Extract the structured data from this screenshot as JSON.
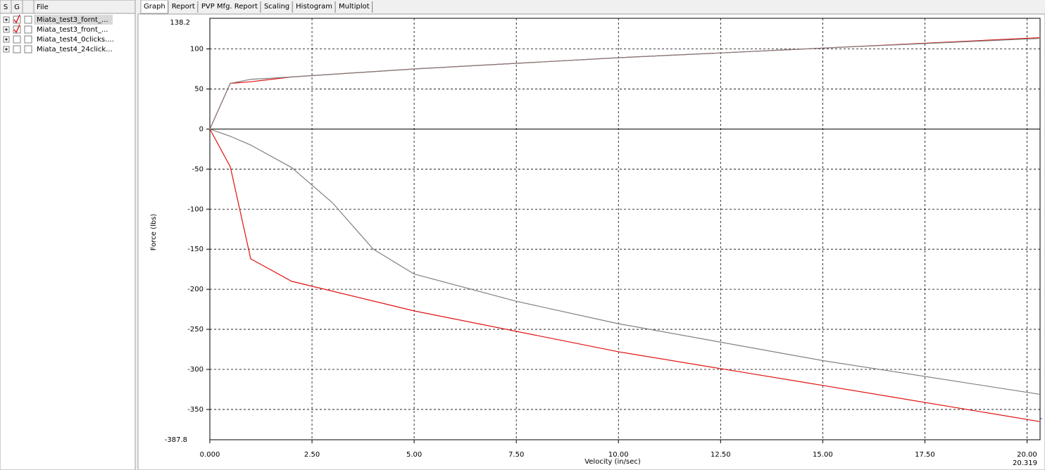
{
  "file_list": {
    "headers": [
      "S",
      "G",
      "File"
    ],
    "rows": [
      {
        "name": "Miata_test3_fornt_...",
        "color": "#e01010",
        "s_checked": true
      },
      {
        "name": "Miata_test3_front_...",
        "color": "#808080",
        "s_checked": true
      },
      {
        "name": "Miata_test4_0clicks....",
        "color": "#000000",
        "s_checked": false
      },
      {
        "name": "Miata_test4_24click...",
        "color": "#8b4a3a",
        "s_checked": false
      }
    ]
  },
  "tabs": [
    "Graph",
    "Report",
    "PVP Mfg. Report",
    "Scaling",
    "Histogram",
    "Multiplot"
  ],
  "selected_tab": 0,
  "chart_data": {
    "type": "line",
    "x_label": "Velocity (in/sec)",
    "y_label": "Force (lbs)",
    "xlim": [
      0,
      20.319
    ],
    "ylim": [
      -387.8,
      138.2
    ],
    "xticks": [
      {
        "value": 0,
        "label": "0.000"
      },
      {
        "value": 2.5,
        "label": "2.50"
      },
      {
        "value": 5,
        "label": "5.00"
      },
      {
        "value": 7.5,
        "label": "7.50"
      },
      {
        "value": 10,
        "label": "10.00"
      },
      {
        "value": 12.5,
        "label": "12.50"
      },
      {
        "value": 15,
        "label": "15.00"
      },
      {
        "value": 17.5,
        "label": "17.50"
      },
      {
        "value": 20,
        "label": "20.00"
      }
    ],
    "yticks": [
      100,
      50,
      0,
      -50,
      -100,
      -150,
      -200,
      -250,
      -300,
      -350
    ],
    "grid": true,
    "series": [
      {
        "color": "#e01010",
        "x": [
          0,
          0.5,
          1,
          2,
          5,
          10,
          15,
          20.3
        ],
        "values": [
          0,
          57,
          59,
          65,
          75,
          89,
          101,
          114
        ]
      },
      {
        "color": "#808080",
        "x": [
          0,
          0.5,
          1,
          2,
          5,
          10,
          15,
          20.3
        ],
        "values": [
          0,
          57,
          62,
          65,
          75,
          89,
          101,
          113
        ]
      },
      {
        "color": "#e01010",
        "x": [
          0,
          0.5,
          1,
          2,
          5,
          10,
          15,
          20.3
        ],
        "values": [
          0,
          -47,
          -162,
          -190,
          -227,
          -278,
          -320,
          -365
        ]
      },
      {
        "color": "#808080",
        "x": [
          0,
          0.5,
          1,
          2,
          3,
          4,
          5,
          7.5,
          10,
          15,
          20.3
        ],
        "values": [
          0,
          -9,
          -20,
          -48,
          -92,
          -150,
          -181,
          -215,
          -243,
          -289,
          -331
        ]
      }
    ]
  }
}
